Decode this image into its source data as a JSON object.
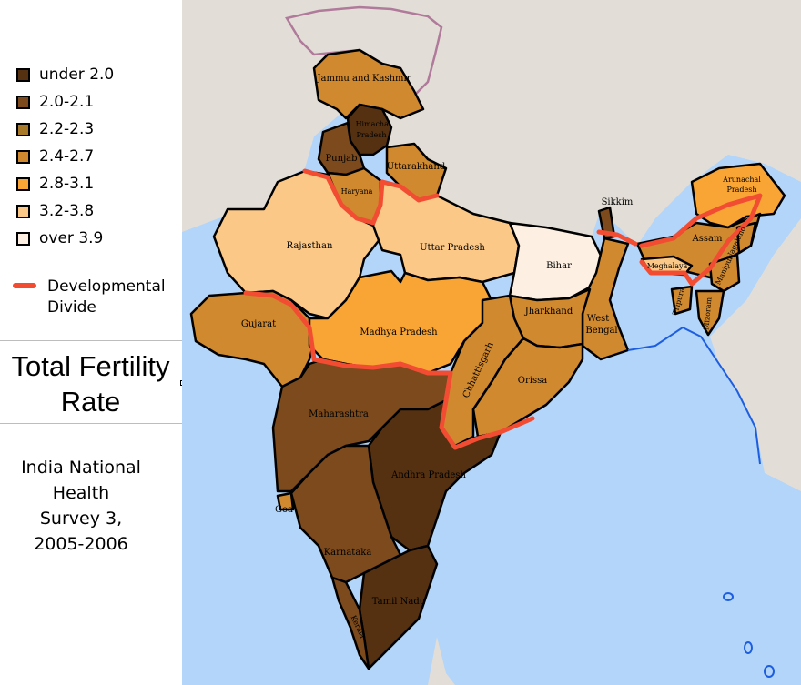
{
  "legend": {
    "items": [
      {
        "label": "under 2.0",
        "color": "#553111"
      },
      {
        "label": "2.0-2.1",
        "color": "#7c4a1c"
      },
      {
        "label": "2.2-2.3",
        "color": "#a87928"
      },
      {
        "label": "2.4-2.7",
        "color": "#d0892e"
      },
      {
        "label": "2.8-3.1",
        "color": "#f8a535"
      },
      {
        "label": "3.2-3.8",
        "color": "#fbc887"
      },
      {
        "label": "over 3.9",
        "color": "#fdf0e2"
      }
    ],
    "divide_line1": "Developmental",
    "divide_line2": "Divide",
    "divide_color": "#f24c33"
  },
  "title": {
    "line1": "Total Fertility",
    "line2": "Rate"
  },
  "source": {
    "line1": "India National",
    "line2": "Health",
    "line3": "Survey 3,",
    "line4": "2005-2006"
  },
  "states": {
    "jammu_kashmir": "Jammu and Kashmir",
    "himachal_1": "Himachal",
    "himachal_2": "Pradesh",
    "punjab": "Punjab",
    "uttarakhand": "Uttarakhand",
    "haryana": "Haryana",
    "rajasthan": "Rajasthan",
    "uttar_pradesh": "Uttar Pradesh",
    "bihar": "Bihar",
    "sikkim": "Sikkim",
    "arunachal_1": "Arunachal",
    "arunachal_2": "Pradesh",
    "assam": "Assam",
    "nagaland": "Nagaland",
    "meghalaya": "Meghalaya",
    "manipur": "Manipur",
    "tripura": "Tripura",
    "mizoram": "Mizoram",
    "gujarat": "Gujarat",
    "madhya_pradesh": "Madhya Pradesh",
    "jharkhand": "Jharkhand",
    "west_bengal_1": "West",
    "west_bengal_2": "Bengal",
    "chhattisgarh": "Chhattisgarh",
    "orissa": "Orissa",
    "maharashtra": "Maharashtra",
    "andhra_pradesh": "Andhra Pradesh",
    "goa": "Goa",
    "karnataka": "Karnataka",
    "tamil_nadu": "Tamil Nadu",
    "kerala": "Kerala"
  },
  "colors": {
    "sea": "#b2d5f9",
    "land_outside": "#e2ded7",
    "coast": "#1d5ee0",
    "disputed_border": "#b07a9b"
  }
}
